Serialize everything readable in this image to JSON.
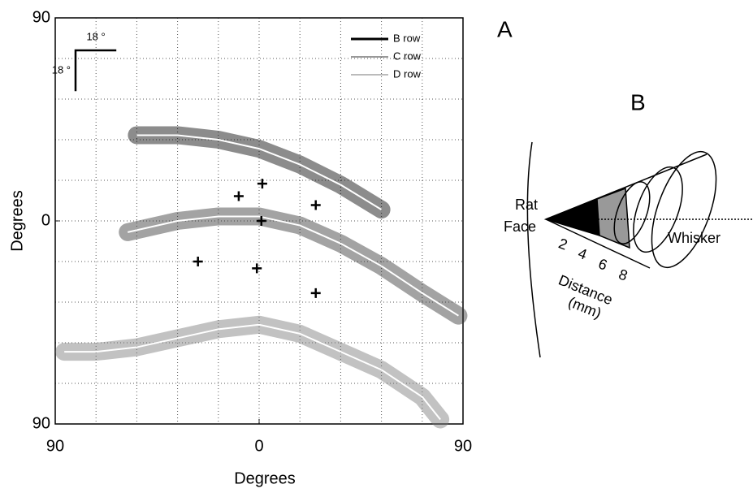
{
  "chart_data": {
    "type": "line",
    "panel_label": "A",
    "x_label": "Degrees",
    "y_label": "Degrees",
    "xlim": [
      -90,
      90
    ],
    "ylim": [
      -90,
      90
    ],
    "xticks": [
      {
        "value": -90,
        "label": "90"
      },
      0,
      {
        "value": 90,
        "label": "90"
      }
    ],
    "yticks": [
      {
        "value": -90,
        "label": "90"
      },
      0,
      90
    ],
    "grid": true,
    "gridlines": [
      -72,
      -54,
      -36,
      -18,
      18,
      36,
      54,
      72
    ],
    "scale_bar": {
      "value": 18,
      "labels": [
        "18 °",
        "18 °"
      ]
    },
    "series": [
      {
        "name": "B row",
        "color": "#000000",
        "x": [
          -54,
          -36,
          -18,
          0,
          18,
          36,
          54
        ],
        "y": [
          38,
          38,
          36,
          32,
          25,
          16,
          5
        ]
      },
      {
        "name": "C row",
        "color": "#333333",
        "x": [
          -58,
          -36,
          -18,
          0,
          18,
          36,
          54,
          72,
          88
        ],
        "y": [
          -5,
          0,
          2,
          2,
          -2,
          -10,
          -20,
          -32,
          -42
        ]
      },
      {
        "name": "D row",
        "color": "#777777",
        "x": [
          -86,
          -72,
          -54,
          -36,
          -18,
          0,
          18,
          36,
          54,
          72,
          80
        ],
        "y": [
          -58,
          -58,
          -56,
          -52,
          -48,
          -46,
          -50,
          -58,
          -66,
          -78,
          -88
        ]
      }
    ],
    "crosses": {
      "x": [
        1.4,
        -9,
        25,
        1,
        -27,
        -1,
        25
      ],
      "y": [
        16.5,
        11,
        7,
        0,
        -18,
        -21,
        -32
      ]
    }
  },
  "diagram": {
    "label": "B",
    "face_label": [
      "Rat",
      "Face"
    ],
    "whisker_label": "Whisker",
    "distance_label": [
      "Distance",
      "(mm)"
    ],
    "distance_ticks": [
      "2",
      "4",
      "6",
      "8"
    ]
  }
}
